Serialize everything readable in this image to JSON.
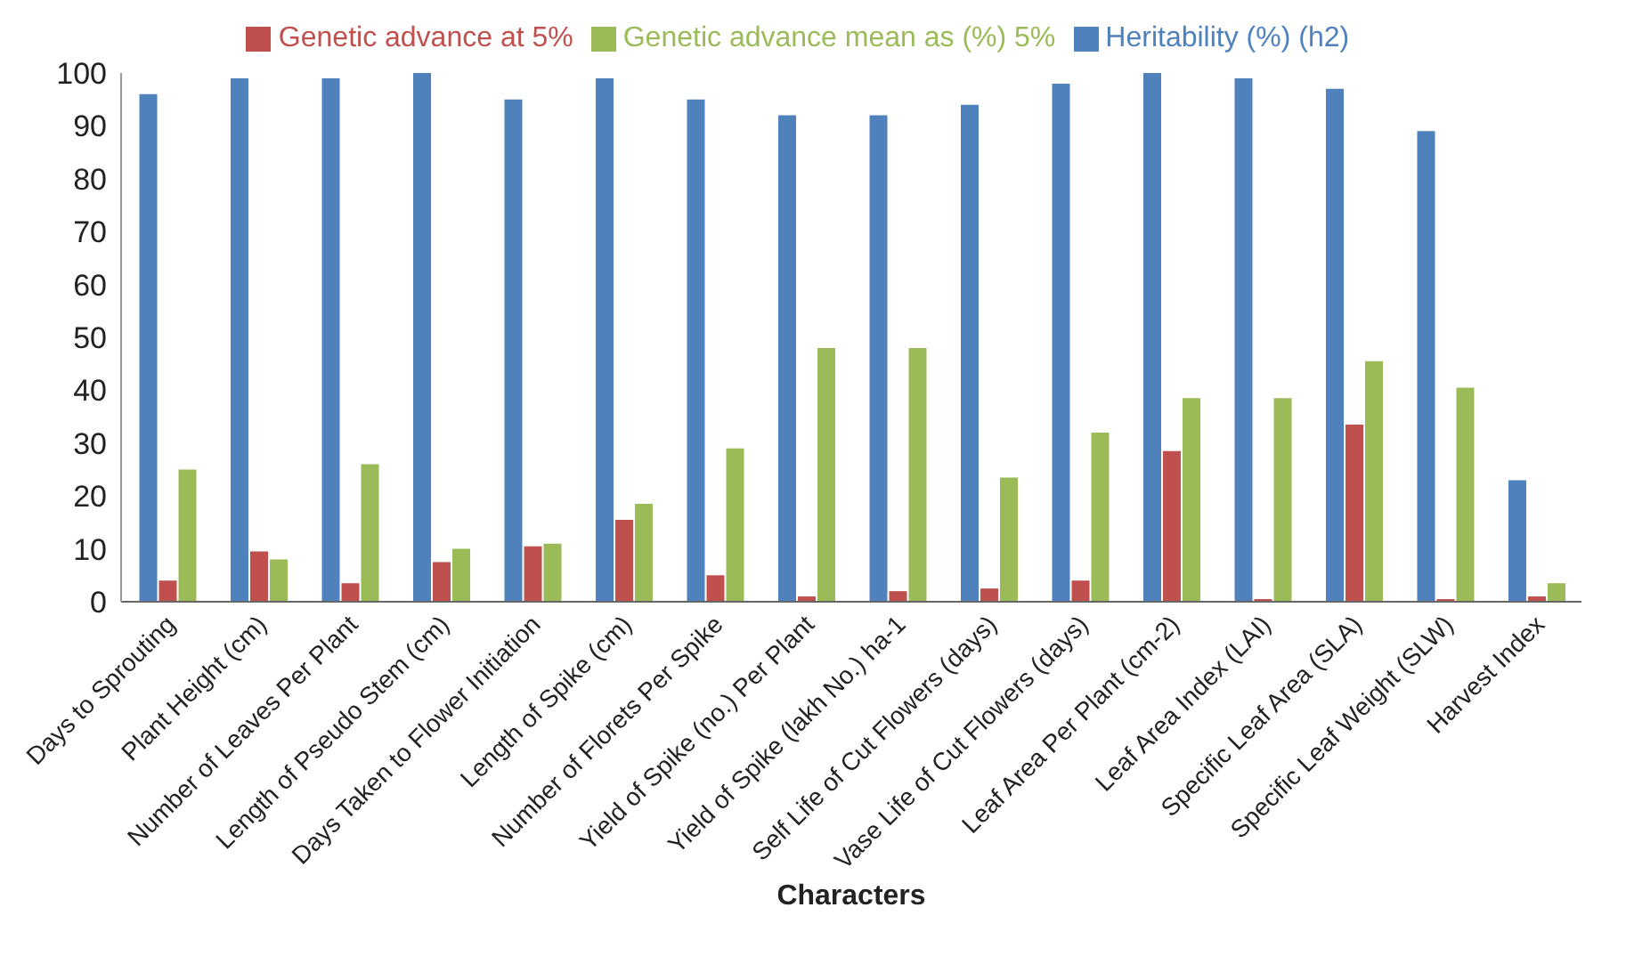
{
  "chart_data": {
    "type": "bar",
    "xlabel": "Characters",
    "categories": [
      "Days to Sprouting",
      "Plant Height (cm)",
      "Number of Leaves Per Plant",
      "Length of Pseudo Stem (cm)",
      "Days Taken to Flower Initiation",
      "Length of Spike (cm)",
      "Number of Florets Per Spike",
      "Yield of Spike (no.) Per Plant",
      "Yield of Spike (lakh No.) ha-1",
      "Self Life of Cut Flowers (days)",
      "Vase Life of Cut Flowers (days)",
      "Leaf Area Per Plant (cm-2)",
      "Leaf Area Index (LAI)",
      "Specific Leaf Area (SLA)",
      "Specific Leaf Weight (SLW)",
      "Harvest Index"
    ],
    "series": [
      {
        "name": "Heritability (%) (h2)",
        "color": "#4f81bd",
        "values": [
          96,
          99,
          99,
          100,
          95,
          99,
          95,
          92,
          92,
          94,
          98,
          100,
          99,
          97,
          89,
          23
        ]
      },
      {
        "name": "Genetic  advance at 5%",
        "color": "#c0504d",
        "values": [
          4,
          9.5,
          3.5,
          7.5,
          10.5,
          15.5,
          5,
          1,
          2,
          2.5,
          4,
          28.5,
          0.5,
          33.5,
          0.5,
          1
        ]
      },
      {
        "name": "Genetic advance mean as (%) 5%",
        "color": "#9bbb59",
        "values": [
          25,
          8,
          26,
          10,
          11,
          18.5,
          29,
          48,
          48,
          23.5,
          32,
          38.5,
          38.5,
          45.5,
          40.5,
          3.5
        ]
      }
    ],
    "ylim": [
      0,
      100
    ],
    "yticks": [
      0,
      10,
      20,
      30,
      40,
      50,
      60,
      70,
      80,
      90,
      100
    ],
    "grid": false,
    "legend": "top"
  }
}
